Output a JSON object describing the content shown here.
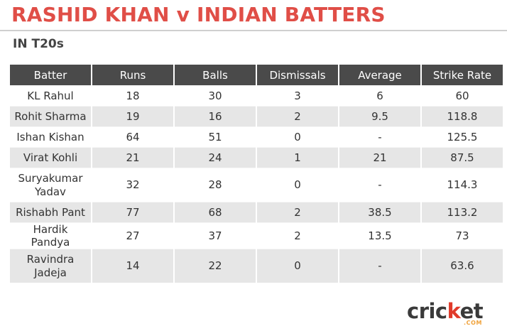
{
  "title": "RASHID KHAN v INDIAN BATTERS",
  "subtitle": "IN T20s",
  "colors": {
    "title": "#e04e47",
    "header_bg": "#4a4a4a",
    "row_odd": "#ffffff",
    "row_even": "#e6e6e6",
    "brand_text": "#3a3a3a",
    "brand_dot": "#e03a2a",
    "brand_com": "#f0a23a"
  },
  "table": {
    "headers": [
      "Batter",
      "Runs",
      "Balls",
      "Dismissals",
      "Average",
      "Strike Rate"
    ],
    "rows": [
      [
        "KL Rahul",
        "18",
        "30",
        "3",
        "6",
        "60"
      ],
      [
        "Rohit Sharma",
        "19",
        "16",
        "2",
        "9.5",
        "118.8"
      ],
      [
        "Ishan Kishan",
        "64",
        "51",
        "0",
        "-",
        "125.5"
      ],
      [
        "Virat Kohli",
        "21",
        "24",
        "1",
        "21",
        "87.5"
      ],
      [
        "Suryakumar Yadav",
        "32",
        "28",
        "0",
        "-",
        "114.3"
      ],
      [
        "Rishabh Pant",
        "77",
        "68",
        "2",
        "38.5",
        "113.2"
      ],
      [
        "Hardik Pandya",
        "27",
        "37",
        "2",
        "13.5",
        "73"
      ],
      [
        "Ravindra Jadeja",
        "14",
        "22",
        "0",
        "-",
        "63.6"
      ]
    ]
  },
  "chart_data": {
    "type": "table",
    "title": "RASHID KHAN v INDIAN BATTERS",
    "subtitle": "IN T20s",
    "columns": [
      "Batter",
      "Runs",
      "Balls",
      "Dismissals",
      "Average",
      "Strike Rate"
    ],
    "rows": [
      {
        "batter": "KL Rahul",
        "runs": 18,
        "balls": 30,
        "dismissals": 3,
        "average": 6,
        "strike_rate": 60
      },
      {
        "batter": "Rohit Sharma",
        "runs": 19,
        "balls": 16,
        "dismissals": 2,
        "average": 9.5,
        "strike_rate": 118.8
      },
      {
        "batter": "Ishan Kishan",
        "runs": 64,
        "balls": 51,
        "dismissals": 0,
        "average": "-",
        "strike_rate": 125.5
      },
      {
        "batter": "Virat Kohli",
        "runs": 21,
        "balls": 24,
        "dismissals": 1,
        "average": 21,
        "strike_rate": 87.5
      },
      {
        "batter": "Suryakumar Yadav",
        "runs": 32,
        "balls": 28,
        "dismissals": 0,
        "average": "-",
        "strike_rate": 114.3
      },
      {
        "batter": "Rishabh Pant",
        "runs": 77,
        "balls": 68,
        "dismissals": 2,
        "average": 38.5,
        "strike_rate": 113.2
      },
      {
        "batter": "Hardik Pandya",
        "runs": 27,
        "balls": 37,
        "dismissals": 2,
        "average": 13.5,
        "strike_rate": 73
      },
      {
        "batter": "Ravindra Jadeja",
        "runs": 14,
        "balls": 22,
        "dismissals": 0,
        "average": "-",
        "strike_rate": 63.6
      }
    ]
  },
  "brand": {
    "name_pre": "cric",
    "name_dot": "k",
    "name_post": "et",
    "domain": ".COM"
  }
}
